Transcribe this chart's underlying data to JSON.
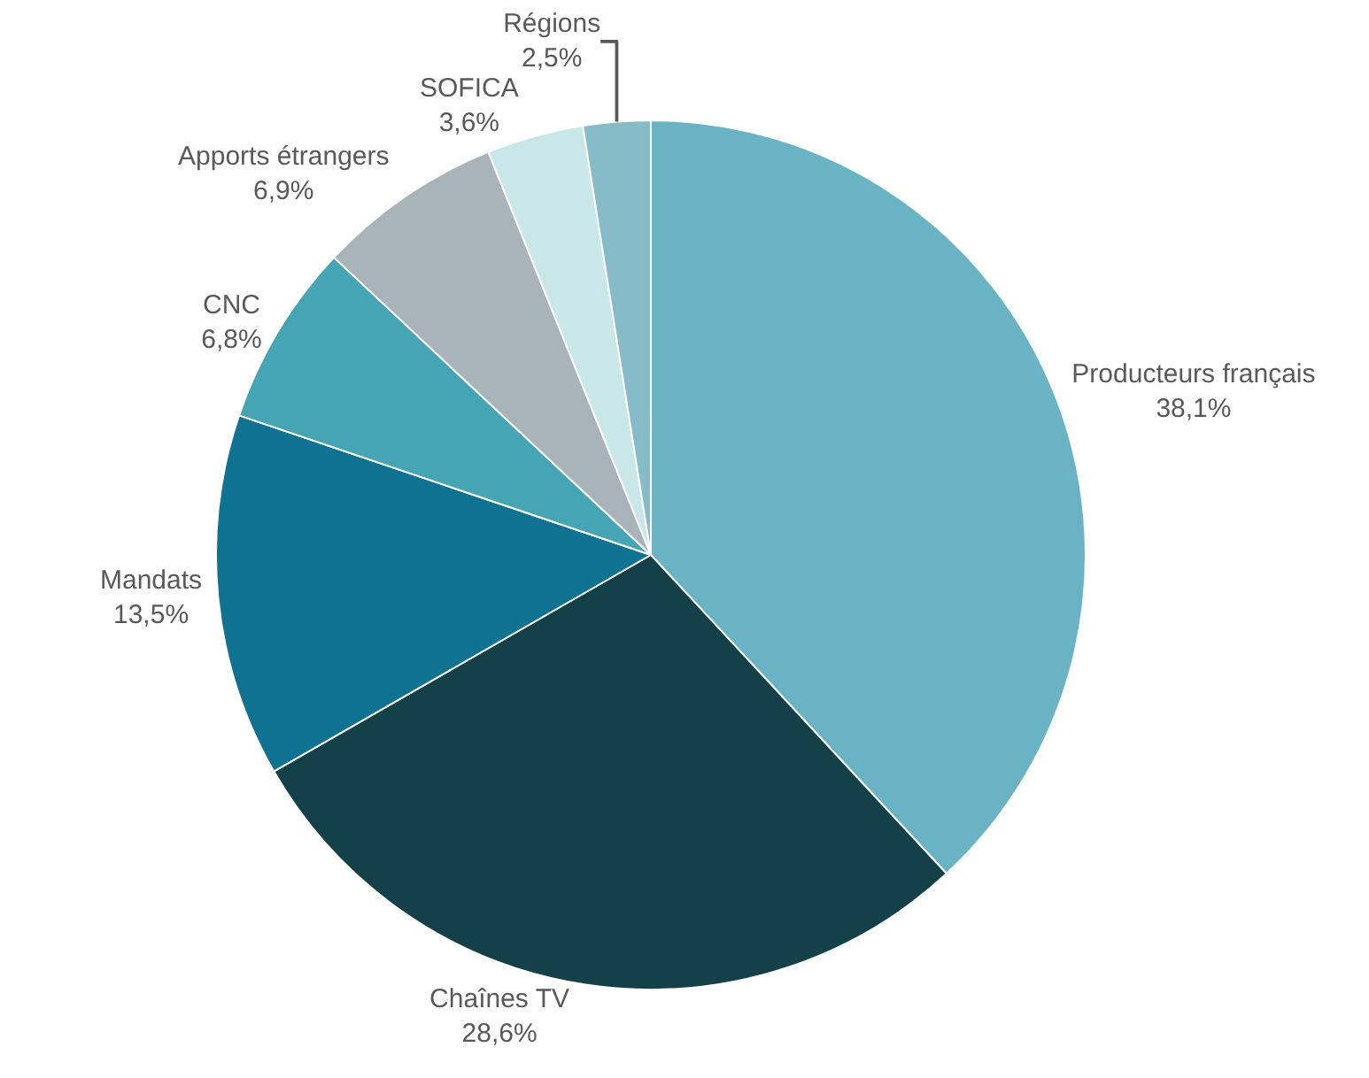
{
  "chart_data": {
    "type": "pie",
    "categories": [
      "Producteurs français",
      "Chaînes TV",
      "Mandats",
      "CNC",
      "Apports étrangers",
      "SOFICA",
      "Régions"
    ],
    "values": [
      38.1,
      28.6,
      13.5,
      6.8,
      6.9,
      3.6,
      2.5
    ],
    "value_labels": [
      "38,1%",
      "28,6%",
      "13,5%",
      "6,8%",
      "6,9%",
      "3,6%",
      "2,5%"
    ],
    "colors": [
      "#6ab3c4",
      "#134049",
      "#0f7290",
      "#45a5b5",
      "#a9b4ba",
      "#c9e6e9",
      "#86bcc8"
    ],
    "legend": false
  }
}
